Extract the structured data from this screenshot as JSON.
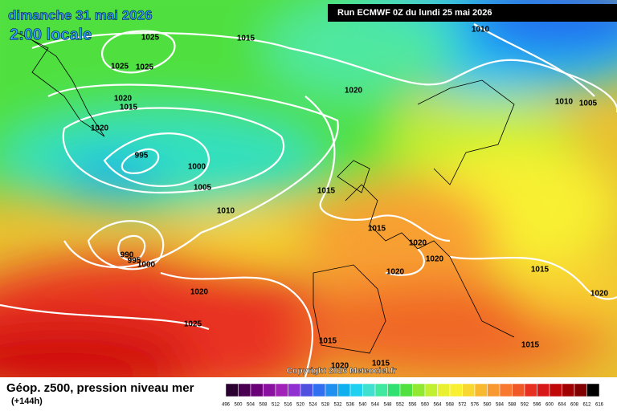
{
  "header": {
    "date": "dimanche 31 mai 2026",
    "time": "2:00 locale",
    "run": "Run ECMWF 0Z du lundi 25 mai 2026"
  },
  "isobar_labels": [
    "1025",
    "1015",
    "1010",
    "1025",
    "1025",
    "1020",
    "1020",
    "1015",
    "1010",
    "1005",
    "1020",
    "995",
    "1000",
    "1005",
    "1015",
    "1010",
    "1015",
    "1020",
    "990",
    "995",
    "1000",
    "1020",
    "1020",
    "1015",
    "1020",
    "1020",
    "1025",
    "1015",
    "1015",
    "1020",
    "1015"
  ],
  "copyright": "Copyright 2026 Meteociel.fr",
  "footer": {
    "title": "Géop. z500, pression niveau mer",
    "lead": "(+144h)"
  },
  "scale": {
    "labels": [
      496,
      500,
      504,
      508,
      512,
      516,
      520,
      524,
      528,
      532,
      536,
      540,
      544,
      548,
      552,
      556,
      560,
      564,
      568,
      572,
      576,
      580,
      584,
      588,
      592,
      596,
      600,
      604,
      608,
      612,
      616
    ],
    "colors": [
      "#2a0030",
      "#4a0050",
      "#6a0078",
      "#8a10a0",
      "#a020b8",
      "#9030d0",
      "#5050e0",
      "#3070f0",
      "#2090f0",
      "#10b0f0",
      "#20d0f0",
      "#40e0d0",
      "#40e8a0",
      "#30e070",
      "#50e040",
      "#90e830",
      "#c0f030",
      "#e8f030",
      "#f8f030",
      "#f8d830",
      "#f8b830",
      "#f89830",
      "#f87830",
      "#f05828",
      "#e83020",
      "#d81818",
      "#c00808",
      "#a00000",
      "#800000",
      "#000000"
    ]
  }
}
